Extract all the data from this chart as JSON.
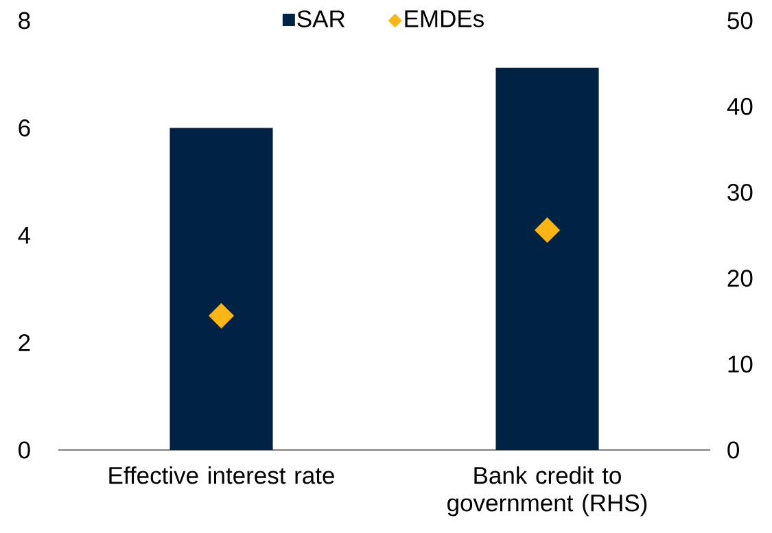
{
  "chart_data": {
    "type": "bar",
    "categories": [
      "Effective interest rate",
      "Bank credit to government (RHS)"
    ],
    "series": [
      {
        "name": "SAR",
        "color": "#002244",
        "values": [
          6.0,
          null
        ]
      },
      {
        "color": "#002244",
        "axis": "y2",
        "values": [
          null,
          44.5
        ]
      },
      {
        "name": "EMDEs",
        "type": "scatter",
        "color": "#fdb515",
        "values": [
          2.5,
          null
        ]
      },
      {
        "type": "scatter",
        "color": "#fdb515",
        "axis": "y2",
        "values": [
          null,
          25.6
        ]
      }
    ],
    "ylim": [
      0,
      8
    ],
    "yticks": [
      0,
      2,
      4,
      6,
      8
    ],
    "y2lim": [
      0,
      50
    ],
    "y2ticks": [
      0,
      10,
      20,
      30,
      40,
      50
    ],
    "legend": "top",
    "marker": "diamond",
    "grid": false
  }
}
